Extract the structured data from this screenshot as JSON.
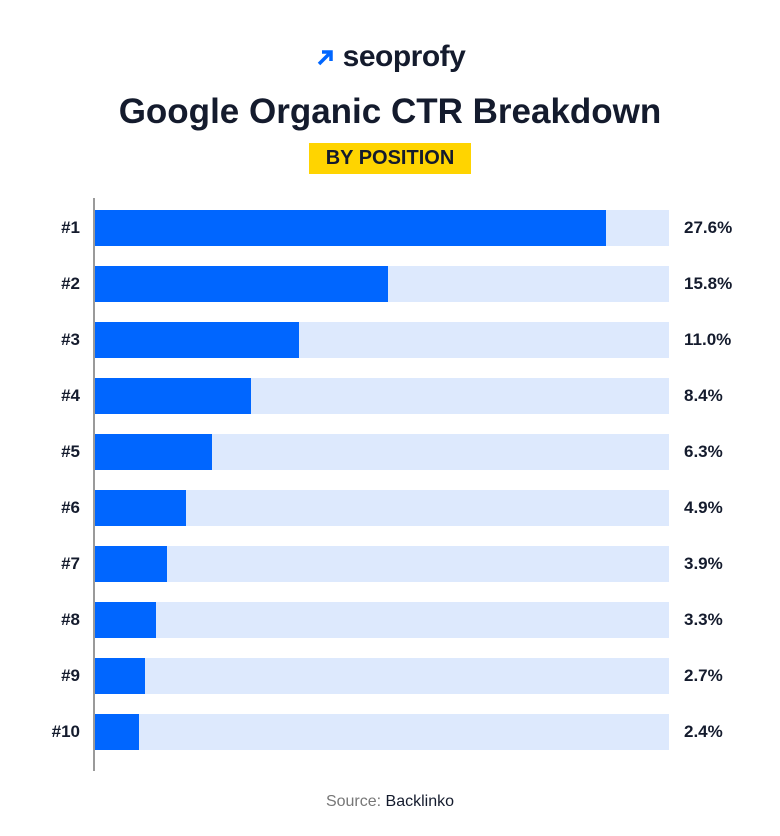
{
  "logo": {
    "text": "seoprofy",
    "icon": "arrow-up-right-icon",
    "color": "#0066ff"
  },
  "chart_data": {
    "type": "bar",
    "orientation": "horizontal",
    "title": "Google Organic CTR Breakdown",
    "subtitle": "BY POSITION",
    "categories": [
      "#1",
      "#2",
      "#3",
      "#4",
      "#5",
      "#6",
      "#7",
      "#8",
      "#9",
      "#10"
    ],
    "values": [
      27.6,
      15.8,
      11.0,
      8.4,
      6.3,
      4.9,
      3.9,
      3.3,
      2.7,
      2.4
    ],
    "labels": [
      "27.6%",
      "15.8%",
      "11.0%",
      "8.4%",
      "6.3%",
      "4.9%",
      "3.9%",
      "3.3%",
      "2.7%",
      "2.4%"
    ],
    "xlim": [
      0,
      31
    ],
    "bar_color": "#0066ff",
    "track_color": "#dde9fd",
    "highlight_color": "#ffd400"
  },
  "source": {
    "label": "Source:",
    "value": "Backlinko"
  }
}
